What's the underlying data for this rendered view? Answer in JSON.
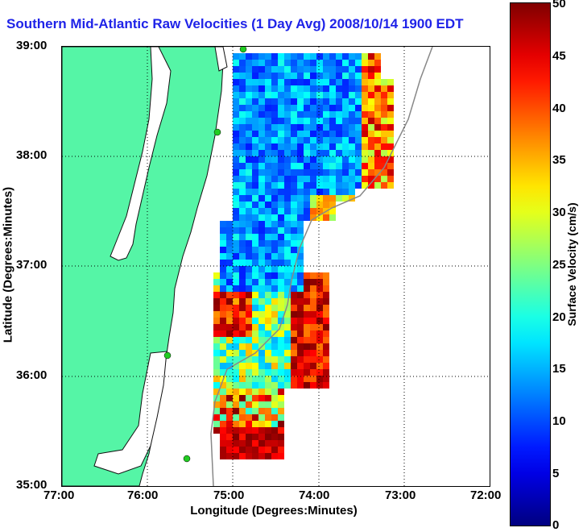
{
  "title": "Southern Mid-Atlantic Raw Velocities (1 Day Avg) 2008/10/14 1900 EDT",
  "x_axis": {
    "label": "Longitude (Degrees:Minutes)",
    "ticks": [
      "77:00",
      "76:00",
      "75:00",
      "74:00",
      "73:00",
      "72:00"
    ]
  },
  "y_axis": {
    "label": "Latitude (Degrees:Minutes)",
    "ticks": [
      "39:00",
      "38:00",
      "37:00",
      "36:00",
      "35:00"
    ]
  },
  "colorbar": {
    "label": "Surface Velocity (cm/s)",
    "ticks": [
      "50",
      "45",
      "40",
      "35",
      "30",
      "25",
      "20",
      "15",
      "10",
      "5",
      "0"
    ],
    "min": 0,
    "max": 50
  },
  "colors": {
    "land": "#55f5a6",
    "coastline": "#1a1a1a",
    "title": "#1f23e8",
    "station": "#22cc22"
  },
  "map_features": [
    "land-mass",
    "bathymetry-contour",
    "velocity-field",
    "velocity-arrows",
    "hf-radar-stations",
    "grid-lines"
  ]
}
